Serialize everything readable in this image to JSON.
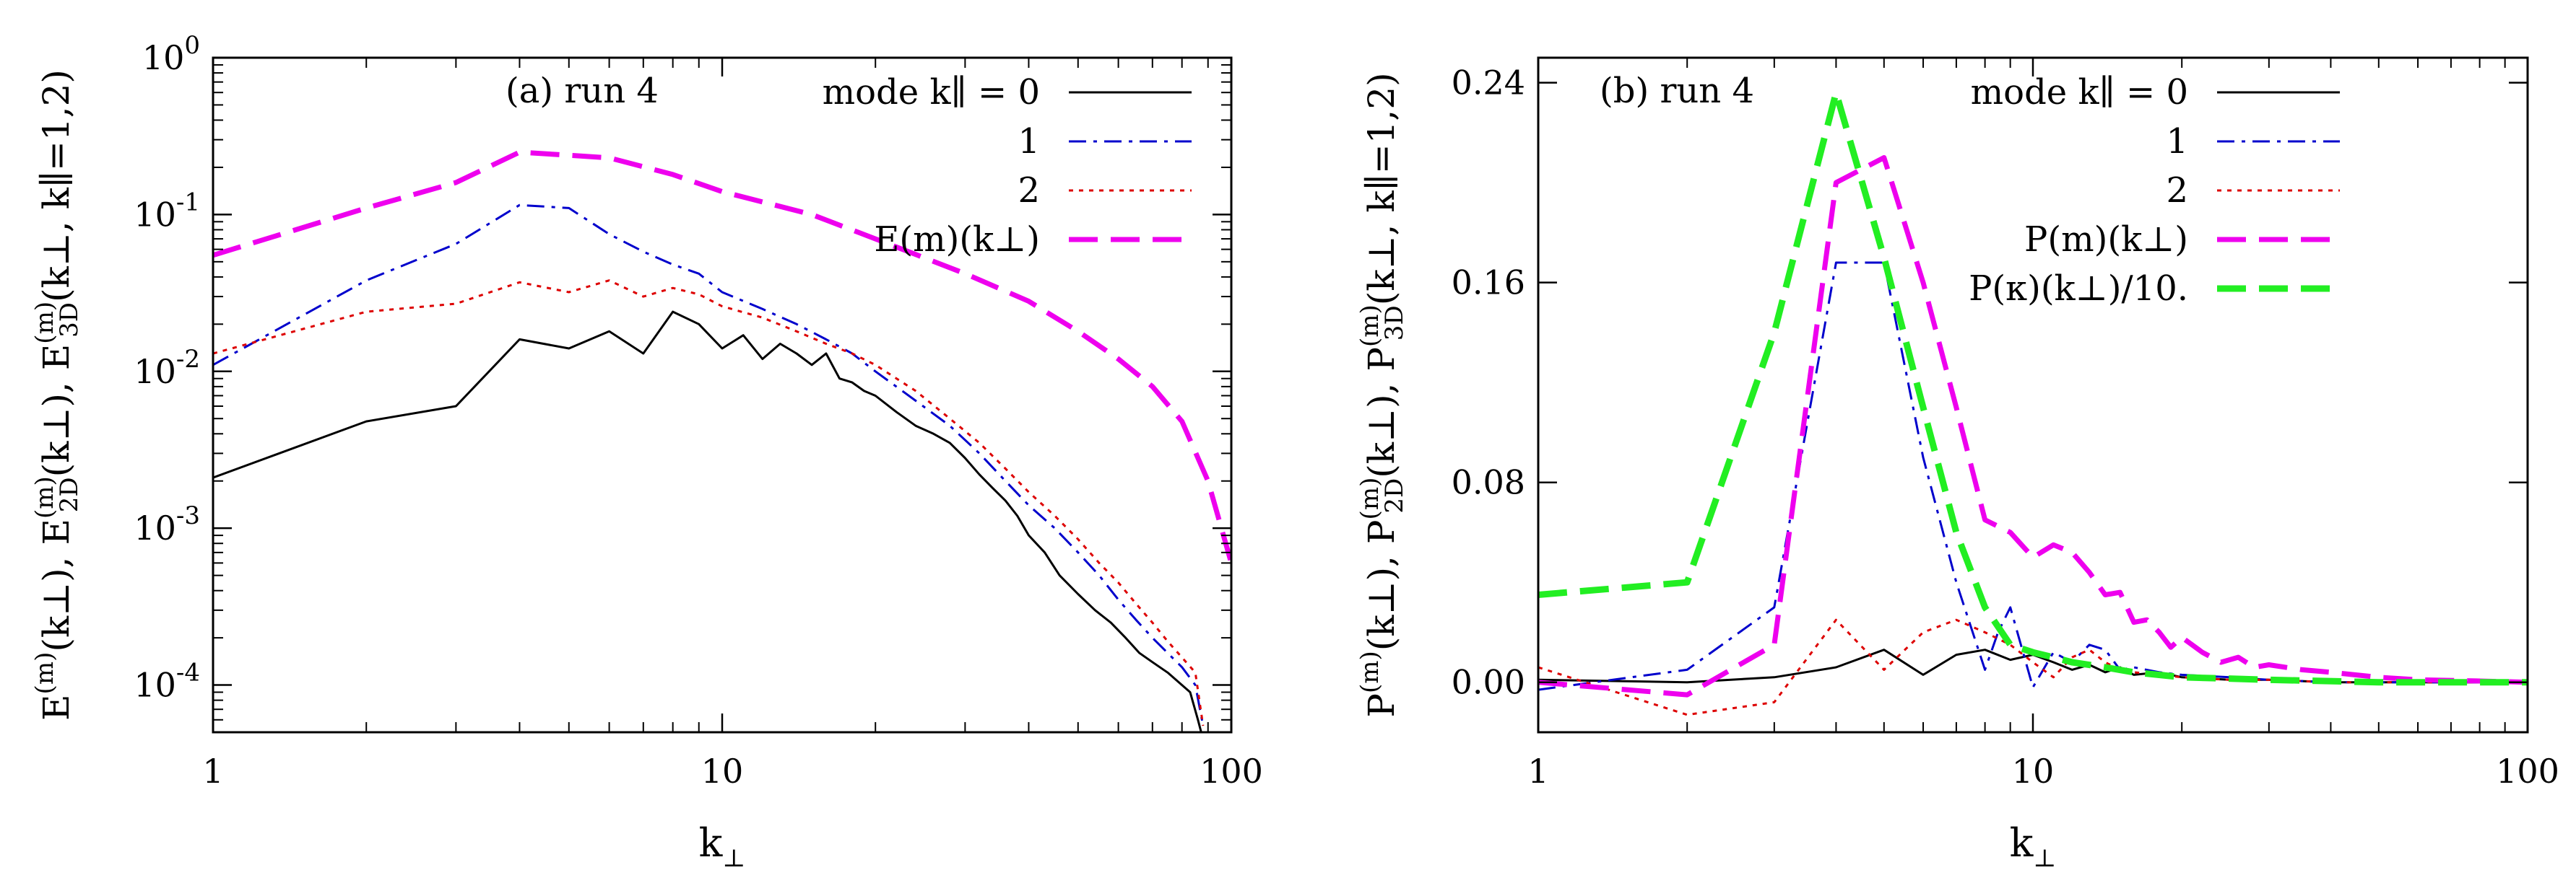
{
  "chart_data": [
    {
      "panel": "a",
      "type": "line",
      "yscale": "log",
      "xscale": "log",
      "annotation_label": "(a)",
      "annotation_run": "run 4",
      "xlabel": {
        "base": "k",
        "sub": "⊥"
      },
      "ylabel": {
        "parts": [
          {
            "base": "E",
            "sup": "(m)",
            "arg": "(k⊥),"
          },
          {
            "base": "E",
            "sup": "(m)",
            "sub": "2D",
            "arg": "(k⊥),"
          },
          {
            "base": "E",
            "sup": "(m)",
            "sub": "3D",
            "arg": "(k⊥, k∥=1,2)"
          }
        ]
      },
      "xlim": [
        1,
        100
      ],
      "ylim": [
        5e-05,
        1
      ],
      "xticks": [
        1,
        10,
        100
      ],
      "xtick_labels": [
        "1",
        "10",
        "100"
      ],
      "yticks": [
        0.0001,
        0.001,
        0.01,
        0.1,
        1
      ],
      "ytick_labels": [
        {
          "base": "10",
          "exp": "-4"
        },
        {
          "base": "10",
          "exp": "-3"
        },
        {
          "base": "10",
          "exp": "-2"
        },
        {
          "base": "10",
          "exp": "-1"
        },
        {
          "base": "10",
          "exp": "0"
        }
      ],
      "legend_position": "top-right",
      "series": [
        {
          "name": "mode k∥ = 0",
          "color": "#000000",
          "dash": "none",
          "width": 3,
          "x": [
            1,
            2,
            3,
            4,
            5,
            6,
            7,
            8,
            9,
            10,
            11,
            12,
            13,
            14,
            15,
            16,
            17,
            18,
            19,
            20,
            22,
            24,
            26,
            28,
            30,
            32,
            34,
            36,
            38,
            40,
            43,
            46,
            50,
            54,
            58,
            62,
            66,
            70,
            75,
            80,
            83,
            86,
            88
          ],
          "y": [
            0.0021,
            0.0048,
            0.006,
            0.016,
            0.014,
            0.018,
            0.013,
            0.024,
            0.02,
            0.014,
            0.017,
            0.012,
            0.015,
            0.013,
            0.011,
            0.013,
            0.009,
            0.0085,
            0.0075,
            0.007,
            0.0055,
            0.0045,
            0.004,
            0.0035,
            0.0028,
            0.0022,
            0.0018,
            0.0015,
            0.0012,
            0.0009,
            0.0007,
            0.0005,
            0.00038,
            0.0003,
            0.00025,
            0.0002,
            0.00016,
            0.00014,
            0.00012,
            0.0001,
            9e-05,
            6e-05,
            4.5e-05
          ]
        },
        {
          "name": "1",
          "color": "#0000cc",
          "dash": "24,10,5,10",
          "width": 3,
          "x": [
            1,
            2,
            3,
            4,
            5,
            6,
            7,
            8,
            9,
            10,
            12,
            14,
            16,
            18,
            20,
            24,
            28,
            32,
            36,
            40,
            45,
            50,
            55,
            60,
            65,
            70,
            75,
            80,
            85,
            88
          ],
          "y": [
            0.011,
            0.038,
            0.065,
            0.115,
            0.11,
            0.075,
            0.058,
            0.048,
            0.042,
            0.032,
            0.025,
            0.02,
            0.016,
            0.013,
            0.01,
            0.0065,
            0.0045,
            0.003,
            0.002,
            0.0014,
            0.001,
            0.0007,
            0.0005,
            0.00035,
            0.00026,
            0.0002,
            0.00016,
            0.00013,
            0.0001,
            5.5e-05
          ]
        },
        {
          "name": "2",
          "color": "#dd0000",
          "dash": "6,8",
          "width": 3,
          "x": [
            1,
            2,
            3,
            4,
            5,
            6,
            7,
            8,
            9,
            10,
            12,
            14,
            16,
            18,
            20,
            24,
            28,
            32,
            36,
            40,
            45,
            50,
            55,
            60,
            65,
            70,
            75,
            80,
            85,
            88
          ],
          "y": [
            0.013,
            0.024,
            0.027,
            0.037,
            0.032,
            0.038,
            0.03,
            0.034,
            0.031,
            0.026,
            0.022,
            0.018,
            0.015,
            0.013,
            0.011,
            0.0075,
            0.005,
            0.0035,
            0.0024,
            0.0017,
            0.0012,
            0.00085,
            0.0006,
            0.00045,
            0.00033,
            0.00025,
            0.00019,
            0.00015,
            0.00012,
            5.5e-05
          ]
        },
        {
          "name": "E(m)(k⊥)",
          "color": "#ee00ee",
          "dash": "40,18",
          "width": 7,
          "x": [
            1,
            2,
            3,
            4,
            6,
            8,
            10,
            15,
            20,
            30,
            40,
            50,
            60,
            70,
            80,
            90,
            100
          ],
          "y": [
            0.055,
            0.11,
            0.16,
            0.25,
            0.23,
            0.18,
            0.14,
            0.1,
            0.07,
            0.042,
            0.028,
            0.018,
            0.012,
            0.008,
            0.0048,
            0.002,
            0.0006
          ]
        }
      ]
    },
    {
      "panel": "b",
      "type": "line",
      "yscale": "linear",
      "xscale": "log",
      "annotation_label": "(b)",
      "annotation_run": "run 4",
      "xlabel": {
        "base": "k",
        "sub": "⊥"
      },
      "ylabel": {
        "parts": [
          {
            "base": "P",
            "sup": "(m)",
            "arg": "(k⊥),"
          },
          {
            "base": "P",
            "sup": "(m)",
            "sub": "2D",
            "arg": "(k⊥),"
          },
          {
            "base": "P",
            "sup": "(m)",
            "sub": "3D",
            "arg": "(k⊥, k∥=1,2)"
          }
        ]
      },
      "xlim": [
        1,
        100
      ],
      "ylim": [
        -0.02,
        0.25
      ],
      "xticks": [
        1,
        10,
        100
      ],
      "xtick_labels": [
        "1",
        "10",
        "100"
      ],
      "yticks": [
        0.0,
        0.08,
        0.16,
        0.24
      ],
      "ytick_labels": [
        "0.00",
        "0.08",
        "0.16",
        "0.24"
      ],
      "legend_position": "top-right",
      "series": [
        {
          "name": "mode k∥ = 0",
          "color": "#000000",
          "dash": "none",
          "width": 3,
          "x": [
            1,
            2,
            3,
            4,
            5,
            6,
            7,
            8,
            9,
            10,
            11,
            12,
            13,
            14,
            15,
            16,
            18,
            20,
            25,
            30,
            40,
            60,
            100
          ],
          "y": [
            0.001,
            0.0,
            0.002,
            0.006,
            0.013,
            0.003,
            0.011,
            0.013,
            0.009,
            0.011,
            0.008,
            0.005,
            0.007,
            0.004,
            0.006,
            0.003,
            0.004,
            0.002,
            0.001,
            0.001,
            0.0,
            0.0,
            0.0
          ]
        },
        {
          "name": "1",
          "color": "#0000cc",
          "dash": "24,10,5,10",
          "width": 3,
          "x": [
            1,
            2,
            3,
            4,
            5,
            6,
            7,
            8,
            8.5,
            9,
            10,
            11,
            12,
            13,
            14,
            15,
            16,
            18,
            20,
            25,
            30,
            40,
            60,
            100
          ],
          "y": [
            -0.003,
            0.005,
            0.03,
            0.168,
            0.168,
            0.09,
            0.04,
            0.005,
            0.02,
            0.03,
            -0.002,
            0.012,
            0.008,
            0.015,
            0.013,
            0.005,
            0.006,
            0.004,
            0.003,
            0.002,
            0.001,
            0.0,
            0.0,
            0.0
          ]
        },
        {
          "name": "2",
          "color": "#dd0000",
          "dash": "6,8",
          "width": 3,
          "x": [
            1,
            2,
            3,
            4,
            5,
            6,
            7,
            8,
            9,
            10,
            11,
            12,
            13,
            14,
            15,
            16,
            18,
            20,
            25,
            30,
            40,
            60,
            100
          ],
          "y": [
            0.006,
            -0.013,
            -0.008,
            0.025,
            0.005,
            0.02,
            0.025,
            0.02,
            0.015,
            0.008,
            0.002,
            0.01,
            0.013,
            0.008,
            0.005,
            0.004,
            0.003,
            0.002,
            0.001,
            0.001,
            0.0,
            0.0,
            0.0
          ]
        },
        {
          "name": "P(m)(k⊥)",
          "color": "#ee00ee",
          "dash": "40,18",
          "width": 7,
          "x": [
            1,
            2,
            3,
            4,
            5,
            6,
            7,
            8,
            9,
            10,
            11,
            12,
            13,
            14,
            15,
            16,
            17,
            18,
            19,
            20,
            22,
            24,
            26,
            28,
            30,
            35,
            40,
            50,
            60,
            80,
            100
          ],
          "y": [
            0.0,
            -0.005,
            0.015,
            0.2,
            0.21,
            0.16,
            0.11,
            0.065,
            0.06,
            0.05,
            0.055,
            0.052,
            0.044,
            0.035,
            0.036,
            0.024,
            0.025,
            0.02,
            0.014,
            0.018,
            0.012,
            0.008,
            0.01,
            0.006,
            0.007,
            0.005,
            0.004,
            0.002,
            0.001,
            0.0005,
            0.0
          ]
        },
        {
          "name": "P(κ)(k⊥)/10.",
          "color": "#22ee22",
          "dash": "40,18",
          "width": 9,
          "x": [
            1,
            2,
            3,
            4,
            5,
            6,
            7,
            8,
            9,
            10,
            11,
            12,
            14,
            16,
            20,
            30,
            50,
            100
          ],
          "y": [
            0.035,
            0.04,
            0.14,
            0.236,
            0.17,
            0.11,
            0.06,
            0.03,
            0.015,
            0.012,
            0.01,
            0.008,
            0.006,
            0.004,
            0.002,
            0.001,
            0.0,
            0.0
          ]
        }
      ]
    }
  ]
}
